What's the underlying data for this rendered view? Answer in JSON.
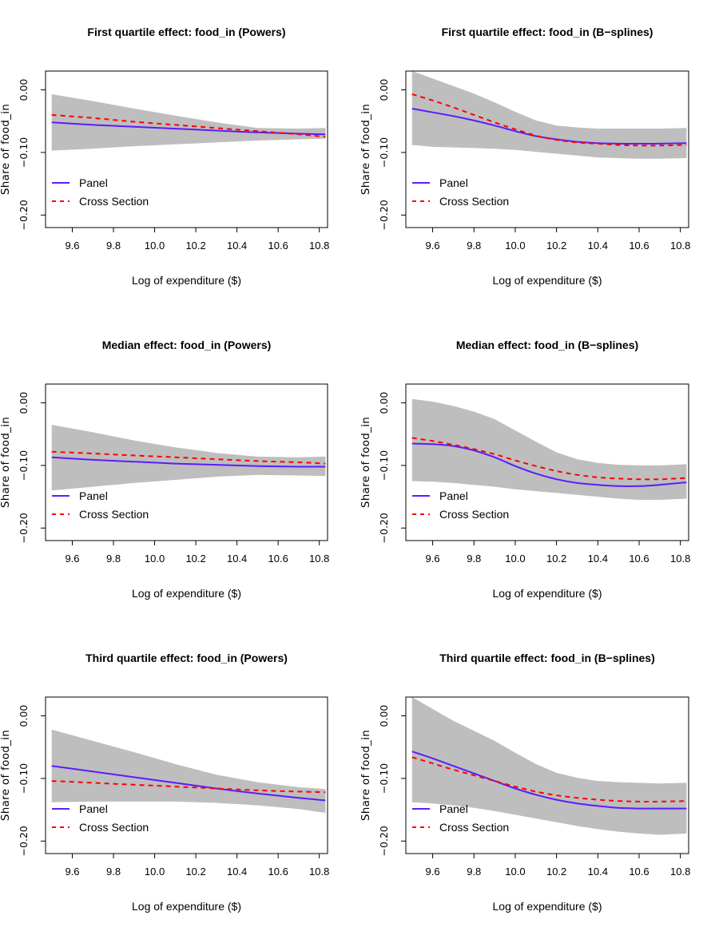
{
  "colors": {
    "band": "#bebebe",
    "panel": "#5b1cff",
    "cross_section": "#ff0000"
  },
  "chart_data": [
    {
      "type": "line",
      "title": "First quartile effect: food_in (Powers)",
      "xlabel": "Log of expenditure ($)",
      "ylabel": "Share of food_in",
      "xlim": [
        9.47,
        10.84
      ],
      "ylim": [
        -0.22,
        0.03
      ],
      "xticks": [
        "9.6",
        "9.8",
        "10.0",
        "10.2",
        "10.4",
        "10.6",
        "10.8"
      ],
      "yticks": [
        "0.00",
        "−0.10",
        "−0.20"
      ],
      "legend": [
        "Panel",
        "Cross Section"
      ],
      "x": [
        9.5,
        9.7,
        9.9,
        10.1,
        10.3,
        10.5,
        10.7,
        10.83
      ],
      "series": [
        {
          "name": "Panel",
          "values": [
            -0.052,
            -0.056,
            -0.059,
            -0.062,
            -0.065,
            -0.068,
            -0.07,
            -0.071
          ]
        },
        {
          "name": "Cross Section",
          "values": [
            -0.04,
            -0.045,
            -0.051,
            -0.056,
            -0.061,
            -0.066,
            -0.071,
            -0.075
          ]
        },
        {
          "name": "Band lower",
          "values": [
            -0.097,
            -0.094,
            -0.09,
            -0.087,
            -0.084,
            -0.081,
            -0.079,
            -0.078
          ]
        },
        {
          "name": "Band upper",
          "values": [
            -0.007,
            -0.018,
            -0.03,
            -0.041,
            -0.052,
            -0.061,
            -0.062,
            -0.061
          ]
        }
      ]
    },
    {
      "type": "line",
      "title": "First quartile effect: food_in (B−splines)",
      "xlabel": "Log of expenditure ($)",
      "ylabel": "Share of food_in",
      "xlim": [
        9.47,
        10.84
      ],
      "ylim": [
        -0.22,
        0.03
      ],
      "xticks": [
        "9.6",
        "9.8",
        "10.0",
        "10.2",
        "10.4",
        "10.6",
        "10.8"
      ],
      "yticks": [
        "0.00",
        "−0.10",
        "−0.20"
      ],
      "legend": [
        "Panel",
        "Cross Section"
      ],
      "x": [
        9.5,
        9.6,
        9.7,
        9.8,
        9.9,
        10.0,
        10.1,
        10.2,
        10.3,
        10.4,
        10.5,
        10.6,
        10.7,
        10.83
      ],
      "series": [
        {
          "name": "Panel",
          "values": [
            -0.03,
            -0.036,
            -0.042,
            -0.049,
            -0.057,
            -0.066,
            -0.074,
            -0.079,
            -0.083,
            -0.085,
            -0.086,
            -0.086,
            -0.086,
            -0.085
          ]
        },
        {
          "name": "Cross Section",
          "values": [
            -0.007,
            -0.017,
            -0.028,
            -0.04,
            -0.052,
            -0.063,
            -0.073,
            -0.08,
            -0.084,
            -0.086,
            -0.088,
            -0.089,
            -0.089,
            -0.088
          ]
        },
        {
          "name": "Band lower",
          "values": [
            -0.088,
            -0.091,
            -0.092,
            -0.093,
            -0.094,
            -0.096,
            -0.099,
            -0.102,
            -0.105,
            -0.108,
            -0.109,
            -0.11,
            -0.11,
            -0.109
          ]
        },
        {
          "name": "Band upper",
          "values": [
            0.03,
            0.018,
            0.006,
            -0.006,
            -0.02,
            -0.035,
            -0.049,
            -0.057,
            -0.06,
            -0.062,
            -0.062,
            -0.062,
            -0.062,
            -0.061
          ]
        }
      ]
    },
    {
      "type": "line",
      "title": "Median effect: food_in (Powers)",
      "xlabel": "Log of expenditure ($)",
      "ylabel": "Share of food_in",
      "xlim": [
        9.47,
        10.84
      ],
      "ylim": [
        -0.22,
        0.03
      ],
      "xticks": [
        "9.6",
        "9.8",
        "10.0",
        "10.2",
        "10.4",
        "10.6",
        "10.8"
      ],
      "yticks": [
        "0.00",
        "−0.10",
        "−0.20"
      ],
      "legend": [
        "Panel",
        "Cross Section"
      ],
      "x": [
        9.5,
        9.7,
        9.9,
        10.1,
        10.3,
        10.5,
        10.7,
        10.83
      ],
      "series": [
        {
          "name": "Panel",
          "values": [
            -0.087,
            -0.091,
            -0.094,
            -0.097,
            -0.099,
            -0.101,
            -0.102,
            -0.102
          ]
        },
        {
          "name": "Cross Section",
          "values": [
            -0.078,
            -0.081,
            -0.084,
            -0.087,
            -0.09,
            -0.093,
            -0.095,
            -0.097
          ]
        },
        {
          "name": "Band lower",
          "values": [
            -0.14,
            -0.134,
            -0.128,
            -0.123,
            -0.118,
            -0.115,
            -0.116,
            -0.117
          ]
        },
        {
          "name": "Band upper",
          "values": [
            -0.035,
            -0.047,
            -0.06,
            -0.071,
            -0.08,
            -0.086,
            -0.087,
            -0.086
          ]
        }
      ]
    },
    {
      "type": "line",
      "title": "Median effect: food_in (B−splines)",
      "xlabel": "Log of expenditure ($)",
      "ylabel": "Share of food_in",
      "xlim": [
        9.47,
        10.84
      ],
      "ylim": [
        -0.22,
        0.03
      ],
      "xticks": [
        "9.6",
        "9.8",
        "10.0",
        "10.2",
        "10.4",
        "10.6",
        "10.8"
      ],
      "yticks": [
        "0.00",
        "−0.10",
        "−0.20"
      ],
      "legend": [
        "Panel",
        "Cross Section"
      ],
      "x": [
        9.5,
        9.6,
        9.7,
        9.8,
        9.9,
        10.0,
        10.1,
        10.2,
        10.3,
        10.4,
        10.5,
        10.6,
        10.7,
        10.83
      ],
      "series": [
        {
          "name": "Panel",
          "values": [
            -0.065,
            -0.066,
            -0.069,
            -0.076,
            -0.087,
            -0.101,
            -0.113,
            -0.122,
            -0.128,
            -0.131,
            -0.133,
            -0.133,
            -0.131,
            -0.127
          ]
        },
        {
          "name": "Cross Section",
          "values": [
            -0.056,
            -0.061,
            -0.067,
            -0.074,
            -0.082,
            -0.092,
            -0.101,
            -0.109,
            -0.115,
            -0.119,
            -0.121,
            -0.122,
            -0.122,
            -0.12
          ]
        },
        {
          "name": "Band lower",
          "values": [
            -0.125,
            -0.126,
            -0.128,
            -0.131,
            -0.134,
            -0.138,
            -0.141,
            -0.144,
            -0.147,
            -0.15,
            -0.153,
            -0.155,
            -0.155,
            -0.153
          ]
        },
        {
          "name": "Band upper",
          "values": [
            0.006,
            0.002,
            -0.005,
            -0.014,
            -0.026,
            -0.044,
            -0.062,
            -0.079,
            -0.09,
            -0.096,
            -0.099,
            -0.1,
            -0.1,
            -0.098
          ]
        }
      ]
    },
    {
      "type": "line",
      "title": "Third quartile effect: food_in (Powers)",
      "xlabel": "Log of expenditure ($)",
      "ylabel": "Share of food_in",
      "xlim": [
        9.47,
        10.84
      ],
      "ylim": [
        -0.22,
        0.03
      ],
      "xticks": [
        "9.6",
        "9.8",
        "10.0",
        "10.2",
        "10.4",
        "10.6",
        "10.8"
      ],
      "yticks": [
        "0.00",
        "−0.10",
        "−0.20"
      ],
      "legend": [
        "Panel",
        "Cross Section"
      ],
      "x": [
        9.5,
        9.7,
        9.9,
        10.1,
        10.3,
        10.5,
        10.7,
        10.83
      ],
      "series": [
        {
          "name": "Panel",
          "values": [
            -0.08,
            -0.089,
            -0.098,
            -0.107,
            -0.116,
            -0.124,
            -0.131,
            -0.135
          ]
        },
        {
          "name": "Cross Section",
          "values": [
            -0.104,
            -0.107,
            -0.11,
            -0.113,
            -0.116,
            -0.119,
            -0.121,
            -0.122
          ]
        },
        {
          "name": "Band lower",
          "values": [
            -0.138,
            -0.137,
            -0.137,
            -0.137,
            -0.139,
            -0.143,
            -0.149,
            -0.155
          ]
        },
        {
          "name": "Band upper",
          "values": [
            -0.022,
            -0.04,
            -0.058,
            -0.077,
            -0.094,
            -0.106,
            -0.114,
            -0.117
          ]
        }
      ]
    },
    {
      "type": "line",
      "title": "Third quartile effect: food_in (B−splines)",
      "xlabel": "Log of expenditure ($)",
      "ylabel": "Share of food_in",
      "xlim": [
        9.47,
        10.84
      ],
      "ylim": [
        -0.22,
        0.03
      ],
      "xticks": [
        "9.6",
        "9.8",
        "10.0",
        "10.2",
        "10.4",
        "10.6",
        "10.8"
      ],
      "yticks": [
        "0.00",
        "−0.10",
        "−0.20"
      ],
      "legend": [
        "Panel",
        "Cross Section"
      ],
      "x": [
        9.5,
        9.6,
        9.7,
        9.8,
        9.9,
        10.0,
        10.1,
        10.2,
        10.3,
        10.4,
        10.5,
        10.6,
        10.7,
        10.83
      ],
      "series": [
        {
          "name": "Panel",
          "values": [
            -0.057,
            -0.068,
            -0.08,
            -0.092,
            -0.104,
            -0.116,
            -0.126,
            -0.134,
            -0.14,
            -0.144,
            -0.147,
            -0.148,
            -0.148,
            -0.148
          ]
        },
        {
          "name": "Cross Section",
          "values": [
            -0.066,
            -0.076,
            -0.086,
            -0.095,
            -0.104,
            -0.113,
            -0.121,
            -0.127,
            -0.131,
            -0.134,
            -0.136,
            -0.137,
            -0.137,
            -0.136
          ]
        },
        {
          "name": "Band lower",
          "values": [
            -0.138,
            -0.14,
            -0.143,
            -0.147,
            -0.152,
            -0.158,
            -0.164,
            -0.17,
            -0.176,
            -0.181,
            -0.185,
            -0.188,
            -0.19,
            -0.188
          ]
        },
        {
          "name": "Band upper",
          "values": [
            0.03,
            0.011,
            -0.008,
            -0.024,
            -0.04,
            -0.059,
            -0.077,
            -0.091,
            -0.099,
            -0.104,
            -0.106,
            -0.107,
            -0.108,
            -0.107
          ]
        }
      ]
    }
  ]
}
